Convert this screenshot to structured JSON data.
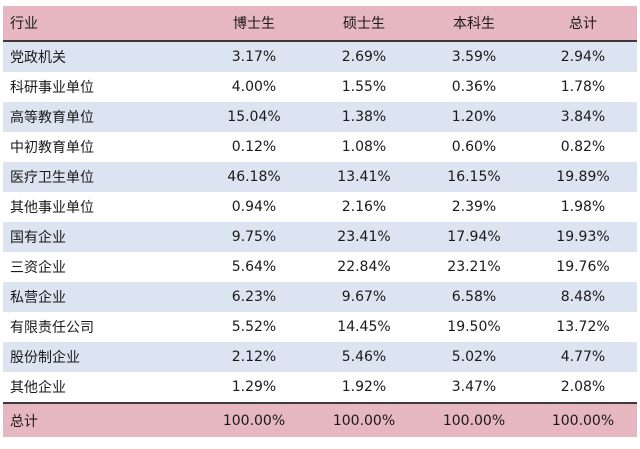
{
  "table": {
    "headers": [
      "行业",
      "博士生",
      "硕士生",
      "本科生",
      "总计"
    ],
    "rows": [
      {
        "industry": "党政机关",
        "phd": "3.17%",
        "master": "2.69%",
        "bachelor": "3.59%",
        "total": "2.94%"
      },
      {
        "industry": "科研事业单位",
        "phd": "4.00%",
        "master": "1.55%",
        "bachelor": "0.36%",
        "total": "1.78%"
      },
      {
        "industry": "高等教育单位",
        "phd": "15.04%",
        "master": "1.38%",
        "bachelor": "1.20%",
        "total": "3.84%"
      },
      {
        "industry": "中初教育单位",
        "phd": "0.12%",
        "master": "1.08%",
        "bachelor": "0.60%",
        "total": "0.82%"
      },
      {
        "industry": "医疗卫生单位",
        "phd": "46.18%",
        "master": "13.41%",
        "bachelor": "16.15%",
        "total": "19.89%"
      },
      {
        "industry": "其他事业单位",
        "phd": "0.94%",
        "master": "2.16%",
        "bachelor": "2.39%",
        "total": "1.98%"
      },
      {
        "industry": "国有企业",
        "phd": "9.75%",
        "master": "23.41%",
        "bachelor": "17.94%",
        "total": "19.93%"
      },
      {
        "industry": "三资企业",
        "phd": "5.64%",
        "master": "22.84%",
        "bachelor": "23.21%",
        "total": "19.76%"
      },
      {
        "industry": "私营企业",
        "phd": "6.23%",
        "master": "9.67%",
        "bachelor": "6.58%",
        "total": "8.48%"
      },
      {
        "industry": "有限责任公司",
        "phd": "5.52%",
        "master": "14.45%",
        "bachelor": "19.50%",
        "total": "13.72%"
      },
      {
        "industry": "股份制企业",
        "phd": "2.12%",
        "master": "5.46%",
        "bachelor": "5.02%",
        "total": "4.77%"
      },
      {
        "industry": "其他企业",
        "phd": "1.29%",
        "master": "1.92%",
        "bachelor": "3.47%",
        "total": "2.08%"
      }
    ],
    "footer": {
      "industry": "总计",
      "phd": "100.00%",
      "master": "100.00%",
      "bachelor": "100.00%",
      "total": "100.00%"
    }
  },
  "colors": {
    "header_bg": "#e6b7c1",
    "stripe_bg": "#dbe4f0",
    "rule": "#3a3a3a"
  }
}
